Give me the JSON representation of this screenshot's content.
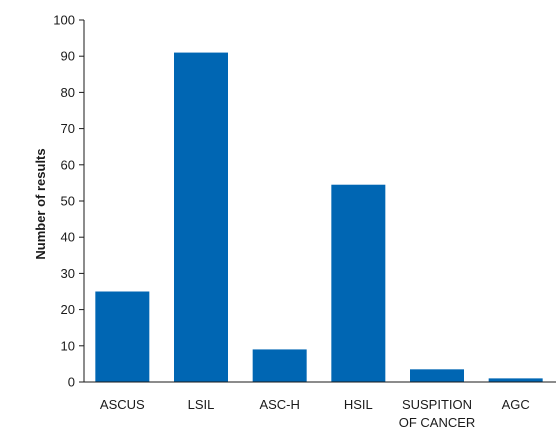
{
  "chart_data": {
    "type": "bar",
    "categories": [
      "ASCUS",
      "LSIL",
      "ASC-H",
      "HSIL",
      "SUSPITION OF CANCER",
      "AGC"
    ],
    "category_lines": [
      [
        "ASCUS"
      ],
      [
        "LSIL"
      ],
      [
        "ASC-H"
      ],
      [
        "HSIL"
      ],
      [
        "SUSPITION",
        "OF CANCER"
      ],
      [
        "AGC"
      ]
    ],
    "values": [
      25,
      91,
      9,
      54.5,
      3.5,
      1
    ],
    "ylabel": "Number of results",
    "xlabel": "",
    "ylim": [
      0,
      100
    ],
    "yticks": [
      0,
      10,
      20,
      30,
      40,
      50,
      60,
      70,
      80,
      90,
      100
    ],
    "bar_color": "#0066b3",
    "axis_color": "#1a1a1a",
    "grid": false,
    "legend": "none"
  }
}
